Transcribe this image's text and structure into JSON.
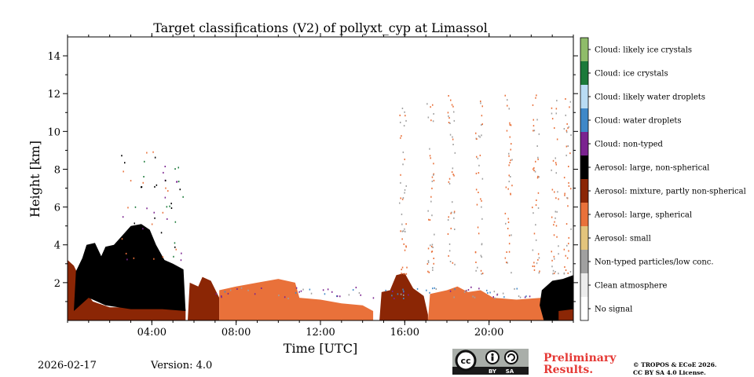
{
  "chart_data": {
    "type": "heatmap",
    "title": "Target classifications (V2) of pollyxt_cyp at Limassol",
    "xlabel": "Time [UTC]",
    "ylabel": "Height [km]",
    "xlim": [
      0,
      24
    ],
    "ylim": [
      0,
      15
    ],
    "x_ticks": [
      {
        "value": 4,
        "label": "04:00"
      },
      {
        "value": 8,
        "label": "08:00"
      },
      {
        "value": 12,
        "label": "12:00"
      },
      {
        "value": 16,
        "label": "16:00"
      },
      {
        "value": 20,
        "label": "20:00"
      }
    ],
    "y_ticks": [
      {
        "value": 2,
        "label": "2"
      },
      {
        "value": 4,
        "label": "4"
      },
      {
        "value": 6,
        "label": "6"
      },
      {
        "value": 8,
        "label": "8"
      },
      {
        "value": 10,
        "label": "10"
      },
      {
        "value": 12,
        "label": "12"
      },
      {
        "value": 14,
        "label": "14"
      }
    ],
    "classes": [
      {
        "name": "Cloud: likely ice crystals",
        "color": "#8fbc6a"
      },
      {
        "name": "Cloud: ice crystals",
        "color": "#1b7a3a"
      },
      {
        "name": "Cloud: likely water droplets",
        "color": "#b9dcf4"
      },
      {
        "name": "Cloud: water droplets",
        "color": "#3f88c8"
      },
      {
        "name": "Cloud: non-typed",
        "color": "#7b2390"
      },
      {
        "name": "Aerosol: large, non-spherical",
        "color": "#000000"
      },
      {
        "name": "Aerosol: mixture, partly non-spherical",
        "color": "#8b2605"
      },
      {
        "name": "Aerosol: large, spherical",
        "color": "#e9713a"
      },
      {
        "name": "Aerosol: small",
        "color": "#e3c47c"
      },
      {
        "name": "Non-typed particles/low conc.",
        "color": "#a0a0a0"
      },
      {
        "name": "Clean atmosphere",
        "color": "#ececec"
      },
      {
        "name": "No signal",
        "color": "#ffffff"
      }
    ],
    "layers": [
      {
        "class": "Aerosol: mixture, partly non-spherical",
        "points": [
          [
            0,
            0
          ],
          [
            0,
            3.2
          ],
          [
            0.3,
            2.9
          ],
          [
            0.6,
            2.2
          ],
          [
            0.8,
            1.6
          ],
          [
            1.2,
            1.0
          ],
          [
            2,
            0.7
          ],
          [
            3,
            0.7
          ],
          [
            4,
            0.9
          ],
          [
            5,
            0.9
          ],
          [
            5.6,
            0.6
          ],
          [
            5.6,
            0
          ],
          [
            0,
            0
          ]
        ]
      },
      {
        "class": "Aerosol: large, non-spherical",
        "points": [
          [
            0.3,
            0.5
          ],
          [
            0.4,
            2.6
          ],
          [
            0.7,
            3.3
          ],
          [
            0.9,
            4.0
          ],
          [
            1.3,
            4.1
          ],
          [
            1.6,
            3.4
          ],
          [
            1.8,
            3.9
          ],
          [
            2.2,
            4.0
          ],
          [
            2.6,
            4.5
          ],
          [
            3.0,
            5.0
          ],
          [
            3.5,
            5.1
          ],
          [
            3.9,
            4.8
          ],
          [
            4.2,
            4.0
          ],
          [
            4.6,
            3.2
          ],
          [
            5.0,
            3.0
          ],
          [
            5.5,
            2.7
          ],
          [
            5.6,
            0.5
          ],
          [
            4.5,
            0.6
          ],
          [
            3.0,
            0.6
          ],
          [
            1.8,
            0.8
          ],
          [
            1.0,
            1.2
          ],
          [
            0.3,
            0.5
          ]
        ]
      },
      {
        "class": "Aerosol: mixture, partly non-spherical",
        "points": [
          [
            5.7,
            0
          ],
          [
            5.8,
            2.0
          ],
          [
            6.2,
            1.8
          ],
          [
            6.4,
            2.3
          ],
          [
            6.8,
            2.1
          ],
          [
            7.2,
            1.2
          ],
          [
            7.2,
            0
          ],
          [
            5.7,
            0
          ]
        ]
      },
      {
        "class": "Aerosol: large, spherical",
        "points": [
          [
            7.2,
            0
          ],
          [
            7.2,
            1.6
          ],
          [
            8,
            1.8
          ],
          [
            9,
            2.0
          ],
          [
            10,
            2.2
          ],
          [
            10.8,
            2.0
          ],
          [
            11,
            1.2
          ],
          [
            12,
            1.1
          ],
          [
            13,
            0.9
          ],
          [
            14,
            0.8
          ],
          [
            14.5,
            0.5
          ],
          [
            14.5,
            0
          ],
          [
            7.2,
            0
          ]
        ]
      },
      {
        "class": "Aerosol: mixture, partly non-spherical",
        "points": [
          [
            14.8,
            0
          ],
          [
            14.9,
            1.5
          ],
          [
            15.3,
            1.6
          ],
          [
            15.6,
            2.4
          ],
          [
            16.0,
            2.5
          ],
          [
            16.4,
            1.7
          ],
          [
            16.9,
            1.3
          ],
          [
            17.1,
            0.3
          ],
          [
            17.1,
            0
          ],
          [
            14.8,
            0
          ]
        ]
      },
      {
        "class": "Aerosol: large, spherical",
        "points": [
          [
            17.1,
            0
          ],
          [
            17.2,
            1.4
          ],
          [
            18,
            1.6
          ],
          [
            18.5,
            1.8
          ],
          [
            19,
            1.5
          ],
          [
            19.6,
            1.6
          ],
          [
            20.2,
            1.2
          ],
          [
            21.3,
            1.1
          ],
          [
            22.5,
            1.2
          ],
          [
            22.6,
            0
          ],
          [
            17.1,
            0
          ]
        ]
      },
      {
        "class": "Aerosol: large, non-spherical",
        "points": [
          [
            22.4,
            0.8
          ],
          [
            22.5,
            1.6
          ],
          [
            23,
            2.1
          ],
          [
            23.5,
            2.2
          ],
          [
            24,
            2.4
          ],
          [
            24,
            0
          ],
          [
            22.6,
            0
          ],
          [
            22.4,
            0.8
          ]
        ]
      },
      {
        "class": "Aerosol: mixture, partly non-spherical",
        "points": [
          [
            23.3,
            0
          ],
          [
            23.3,
            0.5
          ],
          [
            24,
            0.6
          ],
          [
            24,
            0
          ],
          [
            23.3,
            0
          ]
        ]
      }
    ]
  },
  "footer": {
    "date": "2026-02-17",
    "version": "Version: 4.0",
    "preliminary_line1": "Preliminary",
    "preliminary_line2": "Results.",
    "copyright_line1": "© TROPOS & ECoE 2026.",
    "copyright_line2": "CC BY SA 4.0 License.",
    "badge_left": "BY",
    "badge_right": "SA"
  }
}
